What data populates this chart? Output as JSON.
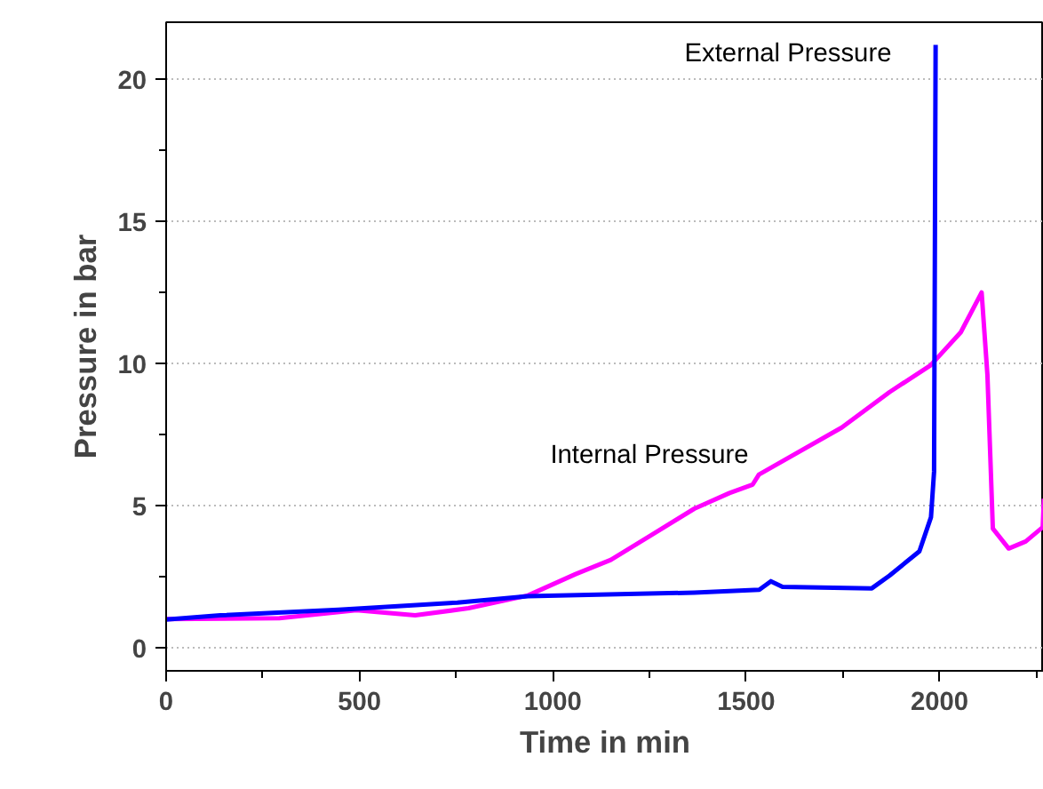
{
  "chart_data": {
    "type": "line",
    "xlabel": "Time in min",
    "ylabel": "Pressure in bar",
    "xlim": [
      0,
      2270
    ],
    "ylim": [
      -0.8,
      22
    ],
    "xticks": [
      0,
      500,
      1000,
      1500,
      2000
    ],
    "yticks": [
      0,
      5,
      10,
      15,
      20
    ],
    "grid": "y",
    "line_style": "solid",
    "marker": "none",
    "series": [
      {
        "color": "#ff00ff",
        "x": [
          0,
          293,
          492,
          644,
          782,
          936,
          1059,
          1150,
          1258,
          1366,
          1457,
          1517,
          1533,
          1747,
          1871,
          1977,
          2055,
          2109,
          2124,
          2138,
          2179,
          2223,
          2267,
          2270
        ],
        "values": [
          1.02,
          1.05,
          1.33,
          1.15,
          1.4,
          1.85,
          2.6,
          3.1,
          4.0,
          4.9,
          5.45,
          5.75,
          6.1,
          7.75,
          9.0,
          9.94,
          11.1,
          12.5,
          9.6,
          4.2,
          3.5,
          3.75,
          4.25,
          5.25
        ]
      },
      {
        "color": "#0000ff",
        "x": [
          0,
          140,
          446,
          753,
          936,
          1366,
          1534,
          1564,
          1594,
          1825,
          1871,
          1948,
          1978,
          1986,
          1990
        ],
        "values": [
          1.0,
          1.15,
          1.35,
          1.6,
          1.82,
          1.95,
          2.05,
          2.35,
          2.15,
          2.1,
          2.55,
          3.4,
          4.6,
          6.2,
          21.2
        ]
      }
    ],
    "annotations": [
      "External Pressure",
      "Internal Pressure"
    ]
  }
}
